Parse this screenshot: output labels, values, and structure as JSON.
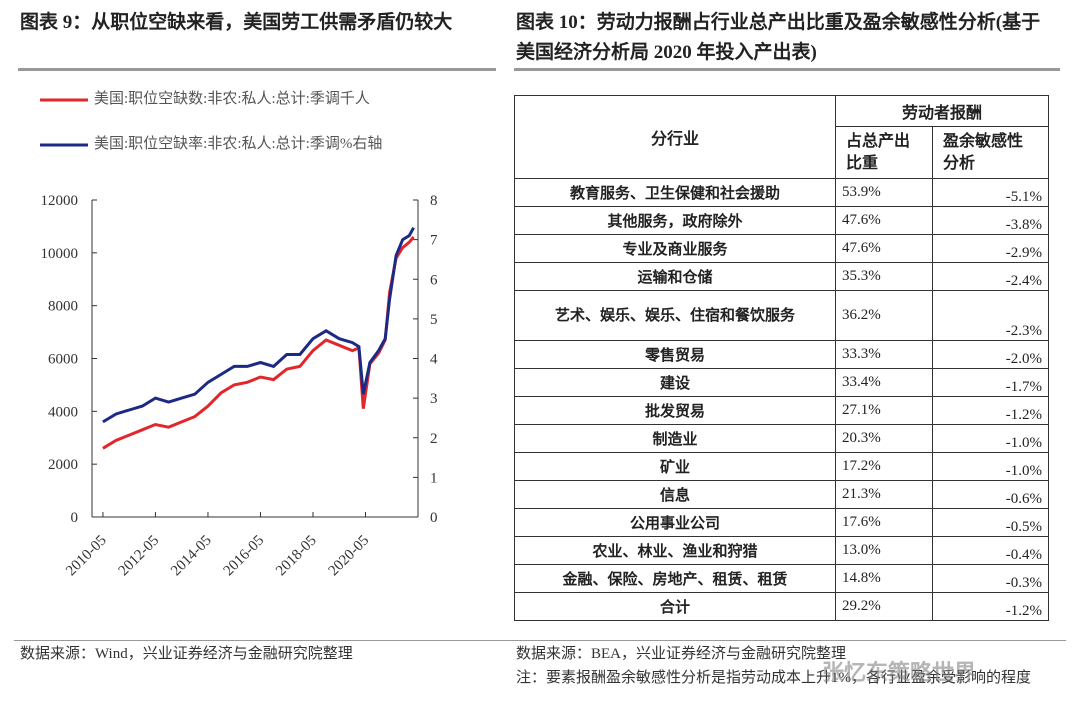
{
  "left": {
    "title": "图表 9：从职位空缺来看，美国劳工供需矛盾仍较大",
    "source": "数据来源：Wind，兴业证券经济与金融研究院整理"
  },
  "chart_data": {
    "type": "line",
    "x": [
      "2010-05",
      "2010-11",
      "2011-05",
      "2011-11",
      "2012-05",
      "2012-11",
      "2013-05",
      "2013-11",
      "2014-05",
      "2014-11",
      "2015-05",
      "2015-11",
      "2016-05",
      "2016-11",
      "2017-05",
      "2017-11",
      "2018-05",
      "2018-11",
      "2019-05",
      "2019-11",
      "2020-02",
      "2020-04",
      "2020-07",
      "2020-11",
      "2021-02",
      "2021-04",
      "2021-07",
      "2021-10",
      "2022-01",
      "2022-03"
    ],
    "xlim": [
      "2009-12",
      "2022-05"
    ],
    "xticks": [
      "2010-05",
      "2012-05",
      "2014-05",
      "2016-05",
      "2018-05",
      "2020-05"
    ],
    "series": [
      {
        "name": "美国:职位空缺数:非农:私人:总计:季调千人",
        "color": "#e3262a",
        "values": [
          2600,
          2900,
          3100,
          3300,
          3500,
          3400,
          3600,
          3800,
          4200,
          4700,
          5000,
          5100,
          5300,
          5200,
          5600,
          5700,
          6300,
          6700,
          6500,
          6300,
          6400,
          4100,
          5800,
          6200,
          6700,
          8500,
          9800,
          10200,
          10400,
          10600
        ]
      },
      {
        "name": "美国:职位空缺率:非农:私人:总计:季调%右轴",
        "color": "#1c2a86",
        "axis": "y2",
        "values": [
          2.4,
          2.6,
          2.7,
          2.8,
          3.0,
          2.9,
          3.0,
          3.1,
          3.4,
          3.6,
          3.8,
          3.8,
          3.9,
          3.8,
          4.1,
          4.1,
          4.5,
          4.7,
          4.5,
          4.4,
          4.3,
          3.1,
          3.9,
          4.2,
          4.5,
          5.5,
          6.6,
          7.0,
          7.1,
          7.3
        ]
      }
    ],
    "ylim": [
      0,
      12000
    ],
    "yticks": [
      0,
      2000,
      4000,
      6000,
      8000,
      10000,
      12000
    ],
    "y2lim": [
      0,
      8
    ],
    "y2ticks": [
      0,
      1,
      2,
      3,
      4,
      5,
      6,
      7,
      8
    ]
  },
  "right": {
    "title": "图表 10：劳动力报酬占行业总产出比重及盈余敏感性分析(基于美国经济分析局 2020 年投入产出表)",
    "table": {
      "header": [
        "分行业",
        "劳动者报酬",
        "占总产出比重",
        "盈余敏感性分析"
      ],
      "rows": [
        [
          "教育服务、卫生保健和社会援助",
          "53.9%",
          "-5.1%"
        ],
        [
          "其他服务，政府除外",
          "47.6%",
          "-3.8%"
        ],
        [
          "专业及商业服务",
          "47.6%",
          "-2.9%"
        ],
        [
          "运输和仓储",
          "35.3%",
          "-2.4%"
        ],
        [
          "艺术、娱乐、娱乐、住宿和餐饮服务",
          "36.2%",
          "-2.3%"
        ],
        [
          "零售贸易",
          "33.3%",
          "-2.0%"
        ],
        [
          "建设",
          "33.4%",
          "-1.7%"
        ],
        [
          "批发贸易",
          "27.1%",
          "-1.2%"
        ],
        [
          "制造业",
          "20.3%",
          "-1.0%"
        ],
        [
          "矿业",
          "17.2%",
          "-1.0%"
        ],
        [
          "信息",
          "21.3%",
          "-0.6%"
        ],
        [
          "公用事业公司",
          "17.6%",
          "-0.5%"
        ],
        [
          "农业、林业、渔业和狩猎",
          "13.0%",
          "-0.4%"
        ],
        [
          "金融、保险、房地产、租赁、租赁",
          "14.8%",
          "-0.3%"
        ],
        [
          "合计",
          "29.2%",
          "-1.2%"
        ]
      ]
    },
    "source": "数据来源：BEA，兴业证券经济与金融研究院整理",
    "note": "注：要素报酬盈余敏感性分析是指劳动成本上升1%，各行业盈余受影响的程度"
  },
  "watermark": "张忆东策略世界"
}
